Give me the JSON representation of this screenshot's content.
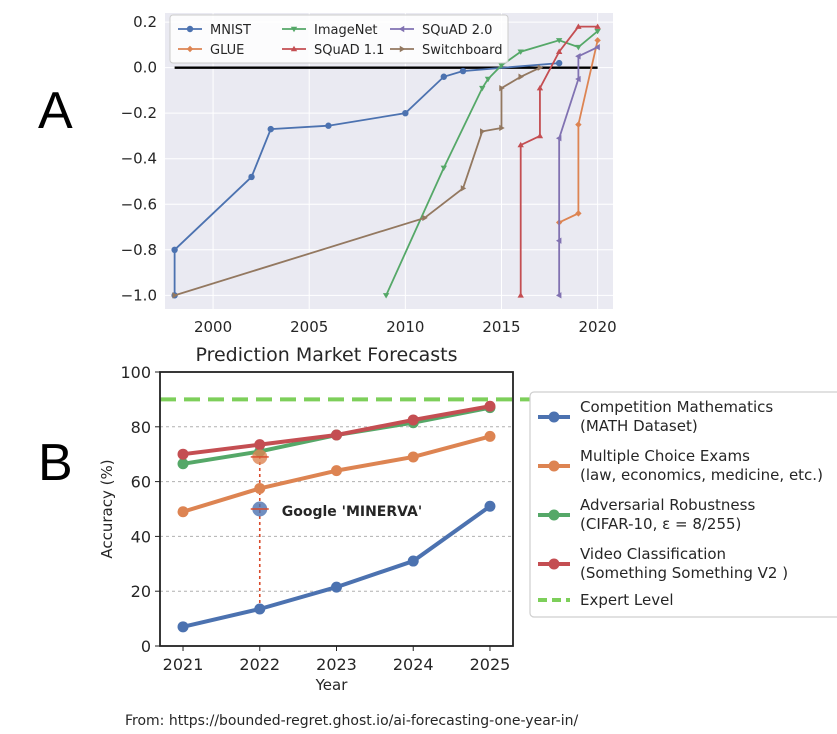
{
  "panels": {
    "a_label": "A",
    "b_label": "B"
  },
  "footer": {
    "source": "From: https://bounded-regret.ghost.io/ai-forecasting-one-year-in/"
  },
  "chart_data": [
    {
      "type": "line",
      "panel": "A",
      "title": "",
      "xlabel": "",
      "ylabel": "",
      "xlim": [
        1997.5,
        2020.8
      ],
      "ylim": [
        -1.06,
        0.24
      ],
      "xticks": [
        2000,
        2005,
        2010,
        2015,
        2020
      ],
      "yticks": [
        0.2,
        0.0,
        -0.2,
        -0.4,
        -0.6,
        -0.8,
        -1.0
      ],
      "ytick_labels": [
        "0.2",
        "0.0",
        "−0.2",
        "−0.4",
        "−0.6",
        "−0.8",
        "−1.0"
      ],
      "reference_line": {
        "y": 0.0,
        "x": [
          1998,
          2020
        ],
        "color": "#000000"
      },
      "legend_position": "top-left",
      "series": [
        {
          "name": "MNIST",
          "color": "#4c72b0",
          "marker": "circle",
          "x": [
            1998,
            1998,
            2002,
            2003,
            2006,
            2010,
            2012,
            2013,
            2018
          ],
          "y": [
            -1.0,
            -0.8,
            -0.48,
            -0.27,
            -0.255,
            -0.2,
            -0.04,
            -0.015,
            0.02
          ]
        },
        {
          "name": "GLUE",
          "color": "#dd8452",
          "marker": "diamond",
          "x": [
            2018,
            2019,
            2019,
            2020
          ],
          "y": [
            -0.68,
            -0.64,
            -0.25,
            0.12
          ]
        },
        {
          "name": "ImageNet",
          "color": "#55a868",
          "marker": "triangle-down",
          "x": [
            2009,
            2012,
            2014,
            2014.3,
            2015,
            2016,
            2018,
            2019,
            2020
          ],
          "y": [
            -1.0,
            -0.44,
            -0.09,
            -0.05,
            0.01,
            0.07,
            0.12,
            0.09,
            0.16
          ]
        },
        {
          "name": "SQuAD 1.1",
          "color": "#c44e52",
          "marker": "triangle-up",
          "x": [
            2016,
            2016,
            2017,
            2017,
            2018,
            2019,
            2020
          ],
          "y": [
            -1.0,
            -0.34,
            -0.3,
            -0.09,
            0.07,
            0.18,
            0.18
          ]
        },
        {
          "name": "SQuAD 2.0",
          "color": "#8172b2",
          "marker": "triangle-left",
          "x": [
            2018,
            2018,
            2018,
            2019,
            2019,
            2020
          ],
          "y": [
            -1.0,
            -0.76,
            -0.31,
            -0.05,
            0.05,
            0.09
          ]
        },
        {
          "name": "Switchboard",
          "color": "#937860",
          "marker": "triangle-right",
          "x": [
            1998,
            2011,
            2013,
            2014,
            2015,
            2015,
            2016,
            2017
          ],
          "y": [
            -1.0,
            -0.66,
            -0.53,
            -0.28,
            -0.265,
            -0.09,
            -0.04,
            0.0
          ]
        }
      ]
    },
    {
      "type": "line",
      "panel": "B",
      "title": "Prediction Market Forecasts",
      "xlabel": "Year",
      "ylabel": "Accuracy (%)",
      "xlim": [
        2020.7,
        2025.3
      ],
      "ylim": [
        0,
        100
      ],
      "xticks": [
        2021,
        2022,
        2023,
        2024,
        2025
      ],
      "yticks": [
        0,
        20,
        40,
        60,
        80,
        100
      ],
      "grid": true,
      "legend_position": "right-outside",
      "series": [
        {
          "name": "Competition Mathematics",
          "detail": "(MATH Dataset)",
          "color": "#4c72b0",
          "x": [
            2021,
            2022,
            2023,
            2024,
            2025
          ],
          "y": [
            7,
            13.5,
            21.5,
            31,
            51
          ]
        },
        {
          "name": "Multiple Choice Exams",
          "detail": "(law, economics, medicine, etc.)",
          "color": "#dd8452",
          "x": [
            2021,
            2022,
            2023,
            2024,
            2025
          ],
          "y": [
            49,
            57.5,
            64,
            69,
            76.5
          ]
        },
        {
          "name": "Adversarial Robustness",
          "detail": "(CIFAR-10, ε = 8/255)",
          "color": "#55a868",
          "x": [
            2021,
            2022,
            2023,
            2024,
            2025
          ],
          "y": [
            66.5,
            71,
            77,
            81.5,
            87
          ]
        },
        {
          "name": "Video Classification",
          "detail": "(Something Something V2 )",
          "color": "#c44e52",
          "x": [
            2021,
            2022,
            2023,
            2024,
            2025
          ],
          "y": [
            70,
            73.5,
            77,
            82.5,
            87.5
          ]
        }
      ],
      "reference_line": {
        "name": "Expert Level",
        "y": 90,
        "color": "#7dcf5a",
        "style": "dashed"
      },
      "annotations": [
        {
          "label": "Google 'MINERVA'",
          "x": 2022,
          "y": 50,
          "color": "#4c72b0"
        },
        {
          "label": "",
          "x": 2022,
          "y": 69,
          "color": "#dd8452"
        }
      ],
      "annotation_line": {
        "x": 2022,
        "y": [
          13.5,
          69
        ],
        "color": "#d94a2b",
        "style": "dotted"
      }
    }
  ]
}
